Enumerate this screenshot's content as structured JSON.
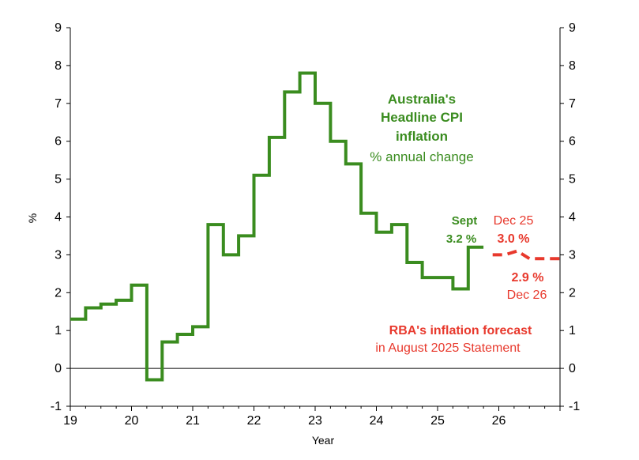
{
  "chart_data": {
    "type": "line",
    "title": "",
    "xlabel": "Year",
    "ylabel": "%",
    "xlim": [
      19,
      27
    ],
    "ylim": [
      -1,
      9
    ],
    "x_ticks": [
      "19",
      "20",
      "21",
      "22",
      "23",
      "24",
      "25",
      "26"
    ],
    "y_ticks": [
      "-1",
      "0",
      "1",
      "2",
      "3",
      "4",
      "5",
      "6",
      "7",
      "8",
      "9"
    ],
    "series": [
      {
        "name": "Headline CPI inflation",
        "style": "solid",
        "color": "#3a8c1f",
        "points": [
          [
            19.0,
            1.3
          ],
          [
            19.25,
            1.3
          ],
          [
            19.25,
            1.6
          ],
          [
            19.5,
            1.6
          ],
          [
            19.5,
            1.7
          ],
          [
            19.75,
            1.7
          ],
          [
            19.75,
            1.8
          ],
          [
            20.0,
            1.8
          ],
          [
            20.0,
            2.2
          ],
          [
            20.25,
            2.2
          ],
          [
            20.25,
            -0.3
          ],
          [
            20.5,
            -0.3
          ],
          [
            20.5,
            0.7
          ],
          [
            20.75,
            0.7
          ],
          [
            20.75,
            0.9
          ],
          [
            21.0,
            0.9
          ],
          [
            21.0,
            1.1
          ],
          [
            21.25,
            1.1
          ],
          [
            21.25,
            3.8
          ],
          [
            21.5,
            3.8
          ],
          [
            21.5,
            3.0
          ],
          [
            21.75,
            3.0
          ],
          [
            21.75,
            3.5
          ],
          [
            22.0,
            3.5
          ],
          [
            22.0,
            5.1
          ],
          [
            22.25,
            5.1
          ],
          [
            22.25,
            6.1
          ],
          [
            22.5,
            6.1
          ],
          [
            22.5,
            7.3
          ],
          [
            22.75,
            7.3
          ],
          [
            22.75,
            7.8
          ],
          [
            23.0,
            7.8
          ],
          [
            23.0,
            7.0
          ],
          [
            23.25,
            7.0
          ],
          [
            23.25,
            6.0
          ],
          [
            23.5,
            6.0
          ],
          [
            23.5,
            5.4
          ],
          [
            23.75,
            5.4
          ],
          [
            23.75,
            4.1
          ],
          [
            24.0,
            4.1
          ],
          [
            24.0,
            3.6
          ],
          [
            24.25,
            3.6
          ],
          [
            24.25,
            3.8
          ],
          [
            24.5,
            3.8
          ],
          [
            24.5,
            2.8
          ],
          [
            24.75,
            2.8
          ],
          [
            24.75,
            2.4
          ],
          [
            25.0,
            2.4
          ],
          [
            25.0,
            2.4
          ],
          [
            25.25,
            2.4
          ],
          [
            25.25,
            2.1
          ],
          [
            25.5,
            2.1
          ],
          [
            25.5,
            3.2
          ],
          [
            25.75,
            3.2
          ]
        ]
      },
      {
        "name": "RBA's inflation forecast",
        "style": "dashed",
        "color": "#e8392d",
        "points": [
          [
            25.9,
            3.0
          ],
          [
            26.1,
            3.0
          ],
          [
            26.3,
            3.1
          ],
          [
            26.5,
            2.9
          ],
          [
            26.75,
            2.9
          ],
          [
            27.0,
            2.9
          ]
        ]
      }
    ],
    "annotations": {
      "title_line1": "Australia's",
      "title_line2": "Headline CPI",
      "title_line3": "inflation",
      "subtitle": "% annual change",
      "sept_label": "Sept",
      "sept_value": "3.2 %",
      "dec25_label": "Dec 25",
      "dec25_value": "3.0 %",
      "dec26_value": "2.9 %",
      "dec26_label": "Dec 26",
      "rba_line1": "RBA's inflation forecast",
      "rba_line2": "in August  2025  Statement"
    }
  }
}
